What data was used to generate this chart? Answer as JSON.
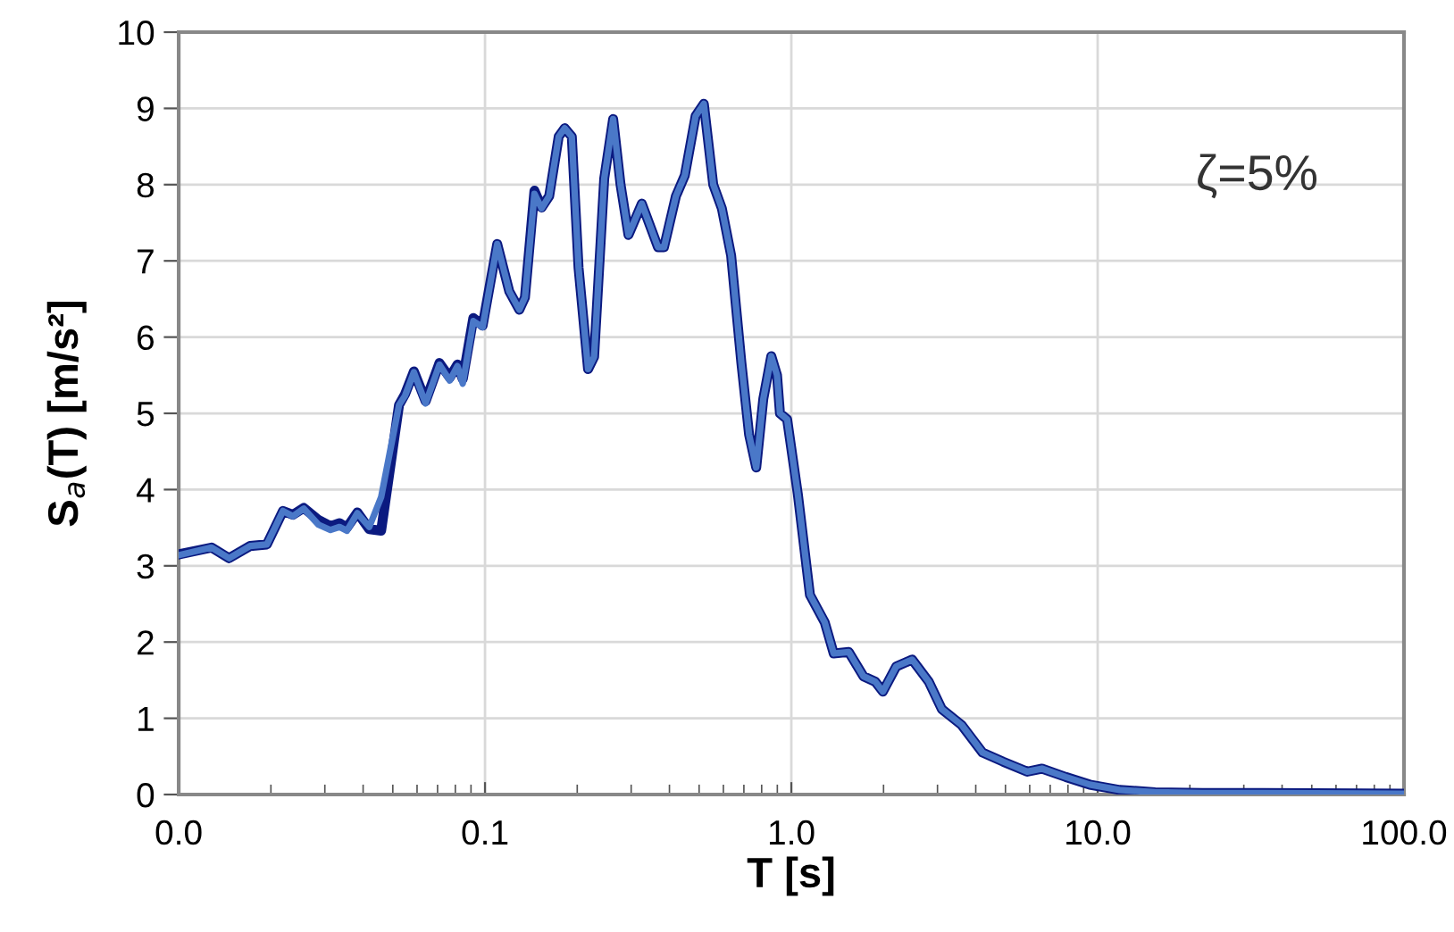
{
  "chart_data": {
    "type": "line",
    "xlabel": "T [s]",
    "ylabel": "S$_{a}$(T) [m/s²]",
    "annotations": [
      "ζ=5%"
    ],
    "log": "x",
    "grid": true,
    "line_style": "solid",
    "marker": "none",
    "xlim": [
      0.01,
      100
    ],
    "ylim": [
      0,
      10
    ],
    "xticks": [
      {
        "value": 0.01,
        "label": "0.0"
      },
      0.1,
      {
        "value": 1,
        "label": "1.0"
      },
      {
        "value": 10,
        "label": "10.0"
      },
      {
        "value": 100,
        "label": "100.0"
      }
    ],
    "yticks": [
      0,
      1,
      2,
      3,
      4,
      5,
      6,
      7,
      8,
      9,
      10
    ],
    "series": [
      {
        "color": "#0b1a80",
        "x": [
          0.01,
          0.0128,
          0.0146,
          0.0171,
          0.0194,
          0.0219,
          0.0236,
          0.0256,
          0.0286,
          0.0313,
          0.0335,
          0.0354,
          0.0383,
          0.0419,
          0.0458,
          0.0524,
          0.0548,
          0.0586,
          0.064,
          0.071,
          0.0767,
          0.0813,
          0.0846,
          0.0916,
          0.0982,
          0.1096,
          0.12,
          0.1294,
          0.135,
          0.145,
          0.153,
          0.162,
          0.174,
          0.182,
          0.192,
          0.202,
          0.217,
          0.227,
          0.245,
          0.262,
          0.277,
          0.294,
          0.325,
          0.367,
          0.384,
          0.42,
          0.449,
          0.487,
          0.518,
          0.556,
          0.593,
          0.636,
          0.687,
          0.728,
          0.768,
          0.81,
          0.86,
          0.898,
          0.918,
          0.969,
          1.05,
          1.15,
          1.285,
          1.375,
          1.54,
          1.72,
          1.88,
          1.99,
          2.2,
          2.48,
          2.81,
          3.1,
          3.6,
          4.21,
          4.92,
          5.89,
          6.58,
          7.87,
          9.42,
          11.8,
          15.4,
          22,
          34.5,
          100
        ],
        "values": [
          3.15,
          3.24,
          3.1,
          3.26,
          3.28,
          3.72,
          3.67,
          3.76,
          3.6,
          3.52,
          3.56,
          3.5,
          3.7,
          3.48,
          3.46,
          5.11,
          5.25,
          5.55,
          5.16,
          5.66,
          5.47,
          5.64,
          5.45,
          6.25,
          6.15,
          7.22,
          6.6,
          6.36,
          6.52,
          7.92,
          7.7,
          7.85,
          8.63,
          8.74,
          8.63,
          6.91,
          5.58,
          5.74,
          8.08,
          8.86,
          8.0,
          7.34,
          7.75,
          7.18,
          7.18,
          7.85,
          8.12,
          8.9,
          9.06,
          8.0,
          7.69,
          7.07,
          5.66,
          4.72,
          4.29,
          5.19,
          5.75,
          5.5,
          5.0,
          4.92,
          3.94,
          2.62,
          2.26,
          1.85,
          1.87,
          1.55,
          1.48,
          1.35,
          1.68,
          1.77,
          1.48,
          1.12,
          0.91,
          0.55,
          0.43,
          0.3,
          0.34,
          0.23,
          0.13,
          0.06,
          0.03,
          0.02,
          0.02,
          0.01
        ]
      },
      {
        "color": "#4a78c8",
        "x": [
          0.01,
          0.0128,
          0.0146,
          0.0171,
          0.0194,
          0.0219,
          0.0236,
          0.0256,
          0.0286,
          0.0313,
          0.0335,
          0.0354,
          0.0383,
          0.0419,
          0.0458,
          0.0524,
          0.0548,
          0.0586,
          0.064,
          0.071,
          0.0767,
          0.0813,
          0.0846,
          0.0916,
          0.0982,
          0.1096,
          0.12,
          0.1294,
          0.135,
          0.145,
          0.153,
          0.162,
          0.174,
          0.182,
          0.192,
          0.202,
          0.217,
          0.227,
          0.245,
          0.262,
          0.277,
          0.294,
          0.325,
          0.367,
          0.384,
          0.42,
          0.449,
          0.487,
          0.518,
          0.556,
          0.593,
          0.636,
          0.687,
          0.728,
          0.768,
          0.81,
          0.86,
          0.898,
          0.918,
          0.969,
          1.05,
          1.15,
          1.285,
          1.375,
          1.54,
          1.72,
          1.88,
          1.99,
          2.2,
          2.48,
          2.81,
          3.1,
          3.6,
          4.21,
          4.92,
          5.89,
          6.58,
          7.87,
          9.42,
          11.8,
          15.4,
          22,
          34.5,
          100
        ],
        "values": [
          3.14,
          3.24,
          3.1,
          3.26,
          3.28,
          3.72,
          3.65,
          3.75,
          3.54,
          3.47,
          3.51,
          3.46,
          3.69,
          3.51,
          3.9,
          5.11,
          5.23,
          5.54,
          5.13,
          5.64,
          5.43,
          5.62,
          5.39,
          6.21,
          6.13,
          7.22,
          6.6,
          6.36,
          6.52,
          7.88,
          7.69,
          7.85,
          8.63,
          8.74,
          8.63,
          6.91,
          5.58,
          5.74,
          8.08,
          8.86,
          8.0,
          7.34,
          7.75,
          7.18,
          7.18,
          7.85,
          8.12,
          8.9,
          9.06,
          8.0,
          7.69,
          7.07,
          5.66,
          4.72,
          4.29,
          5.19,
          5.75,
          5.5,
          5.0,
          4.92,
          3.94,
          2.62,
          2.26,
          1.85,
          1.87,
          1.55,
          1.48,
          1.35,
          1.68,
          1.77,
          1.48,
          1.12,
          0.91,
          0.55,
          0.43,
          0.3,
          0.34,
          0.23,
          0.13,
          0.06,
          0.03,
          0.02,
          0.02,
          0.01
        ]
      }
    ]
  }
}
